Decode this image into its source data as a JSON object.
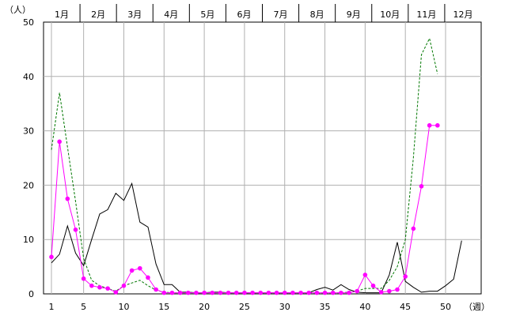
{
  "chart_data": {
    "type": "line",
    "ylabel": "（人）",
    "xlabel_suffix": "（週）",
    "ylim": [
      0,
      50
    ],
    "xlim": [
      1,
      52
    ],
    "yticks": [
      0,
      10,
      20,
      30,
      40,
      50
    ],
    "xticks": [
      1,
      5,
      10,
      15,
      20,
      25,
      30,
      35,
      40,
      45,
      50
    ],
    "months": [
      "1月",
      "2月",
      "3月",
      "4月",
      "5月",
      "6月",
      "7月",
      "8月",
      "9月",
      "10月",
      "11月",
      "12月"
    ],
    "grid": true,
    "series": [
      {
        "style": "solid",
        "color": "#000000",
        "x": [
          1,
          2,
          3,
          4,
          5,
          6,
          7,
          8,
          9,
          10,
          11,
          12,
          13,
          14,
          15,
          16,
          17,
          18,
          19,
          20,
          21,
          22,
          23,
          24,
          25,
          26,
          27,
          28,
          29,
          30,
          31,
          32,
          33,
          34,
          35,
          36,
          37,
          38,
          39,
          40,
          41,
          42,
          43,
          44,
          45,
          46,
          47,
          48,
          49,
          50,
          51,
          52
        ],
        "values": [
          5.7,
          7.3,
          12.5,
          7.5,
          5.2,
          10.0,
          14.7,
          15.5,
          18.5,
          17.2,
          20.3,
          13.2,
          12.3,
          5.5,
          1.7,
          1.7,
          0.3,
          0.3,
          0.2,
          0.2,
          0.3,
          0.3,
          0.2,
          0.2,
          0.2,
          0.2,
          0.2,
          0.2,
          0.2,
          0.2,
          0.2,
          0.2,
          0.2,
          0.8,
          1.2,
          0.7,
          1.7,
          0.8,
          0.3,
          0.2,
          0.2,
          0.2,
          3.5,
          9.5,
          2.3,
          1.2,
          0.3,
          0.5,
          0.5,
          1.5,
          2.7,
          9.8
        ]
      },
      {
        "style": "dashed",
        "color": "#007700",
        "x": [
          1,
          2,
          3,
          4,
          5,
          6,
          7,
          8,
          9,
          10,
          11,
          12,
          13,
          14,
          15,
          16,
          17,
          18,
          19,
          20,
          21,
          22,
          23,
          24,
          25,
          26,
          27,
          28,
          29,
          30,
          31,
          32,
          33,
          34,
          35,
          36,
          37,
          38,
          39,
          40,
          41,
          42,
          43,
          44,
          45,
          46,
          47,
          48,
          49
        ],
        "values": [
          26.5,
          37.0,
          27.0,
          17.0,
          6.5,
          2.5,
          1.5,
          1.0,
          0.5,
          1.5,
          2.0,
          2.5,
          1.5,
          0.7,
          0.3,
          0.2,
          0.2,
          0.2,
          0.2,
          0.2,
          0.2,
          0.2,
          0.2,
          0.2,
          0.2,
          0.2,
          0.2,
          0.2,
          0.2,
          0.2,
          0.2,
          0.2,
          0.2,
          0.2,
          0.2,
          0.2,
          0.2,
          0.3,
          0.5,
          1.0,
          1.0,
          1.0,
          2.5,
          5.0,
          10.0,
          25.0,
          44.0,
          47.0,
          40.5
        ]
      },
      {
        "style": "solid-markers",
        "color": "#ff00ff",
        "x": [
          1,
          2,
          3,
          4,
          5,
          6,
          7,
          8,
          9,
          10,
          11,
          12,
          13,
          14,
          15,
          16,
          17,
          18,
          19,
          20,
          21,
          22,
          23,
          24,
          25,
          26,
          27,
          28,
          29,
          30,
          31,
          32,
          33,
          34,
          35,
          36,
          37,
          38,
          39,
          40,
          41,
          42,
          43,
          44,
          45,
          46,
          47,
          48,
          49
        ],
        "values": [
          6.8,
          28.0,
          17.5,
          11.8,
          2.8,
          1.5,
          1.2,
          1.0,
          0.3,
          1.5,
          4.3,
          4.7,
          3.0,
          0.8,
          0.2,
          0.2,
          0.2,
          0.2,
          0.2,
          0.2,
          0.2,
          0.2,
          0.2,
          0.2,
          0.2,
          0.2,
          0.2,
          0.2,
          0.2,
          0.2,
          0.2,
          0.2,
          0.2,
          0.2,
          0.2,
          0.2,
          0.2,
          0.2,
          0.5,
          3.5,
          1.5,
          0.3,
          0.5,
          0.8,
          3.2,
          12.0,
          19.8,
          31.0,
          31.0
        ]
      }
    ]
  }
}
